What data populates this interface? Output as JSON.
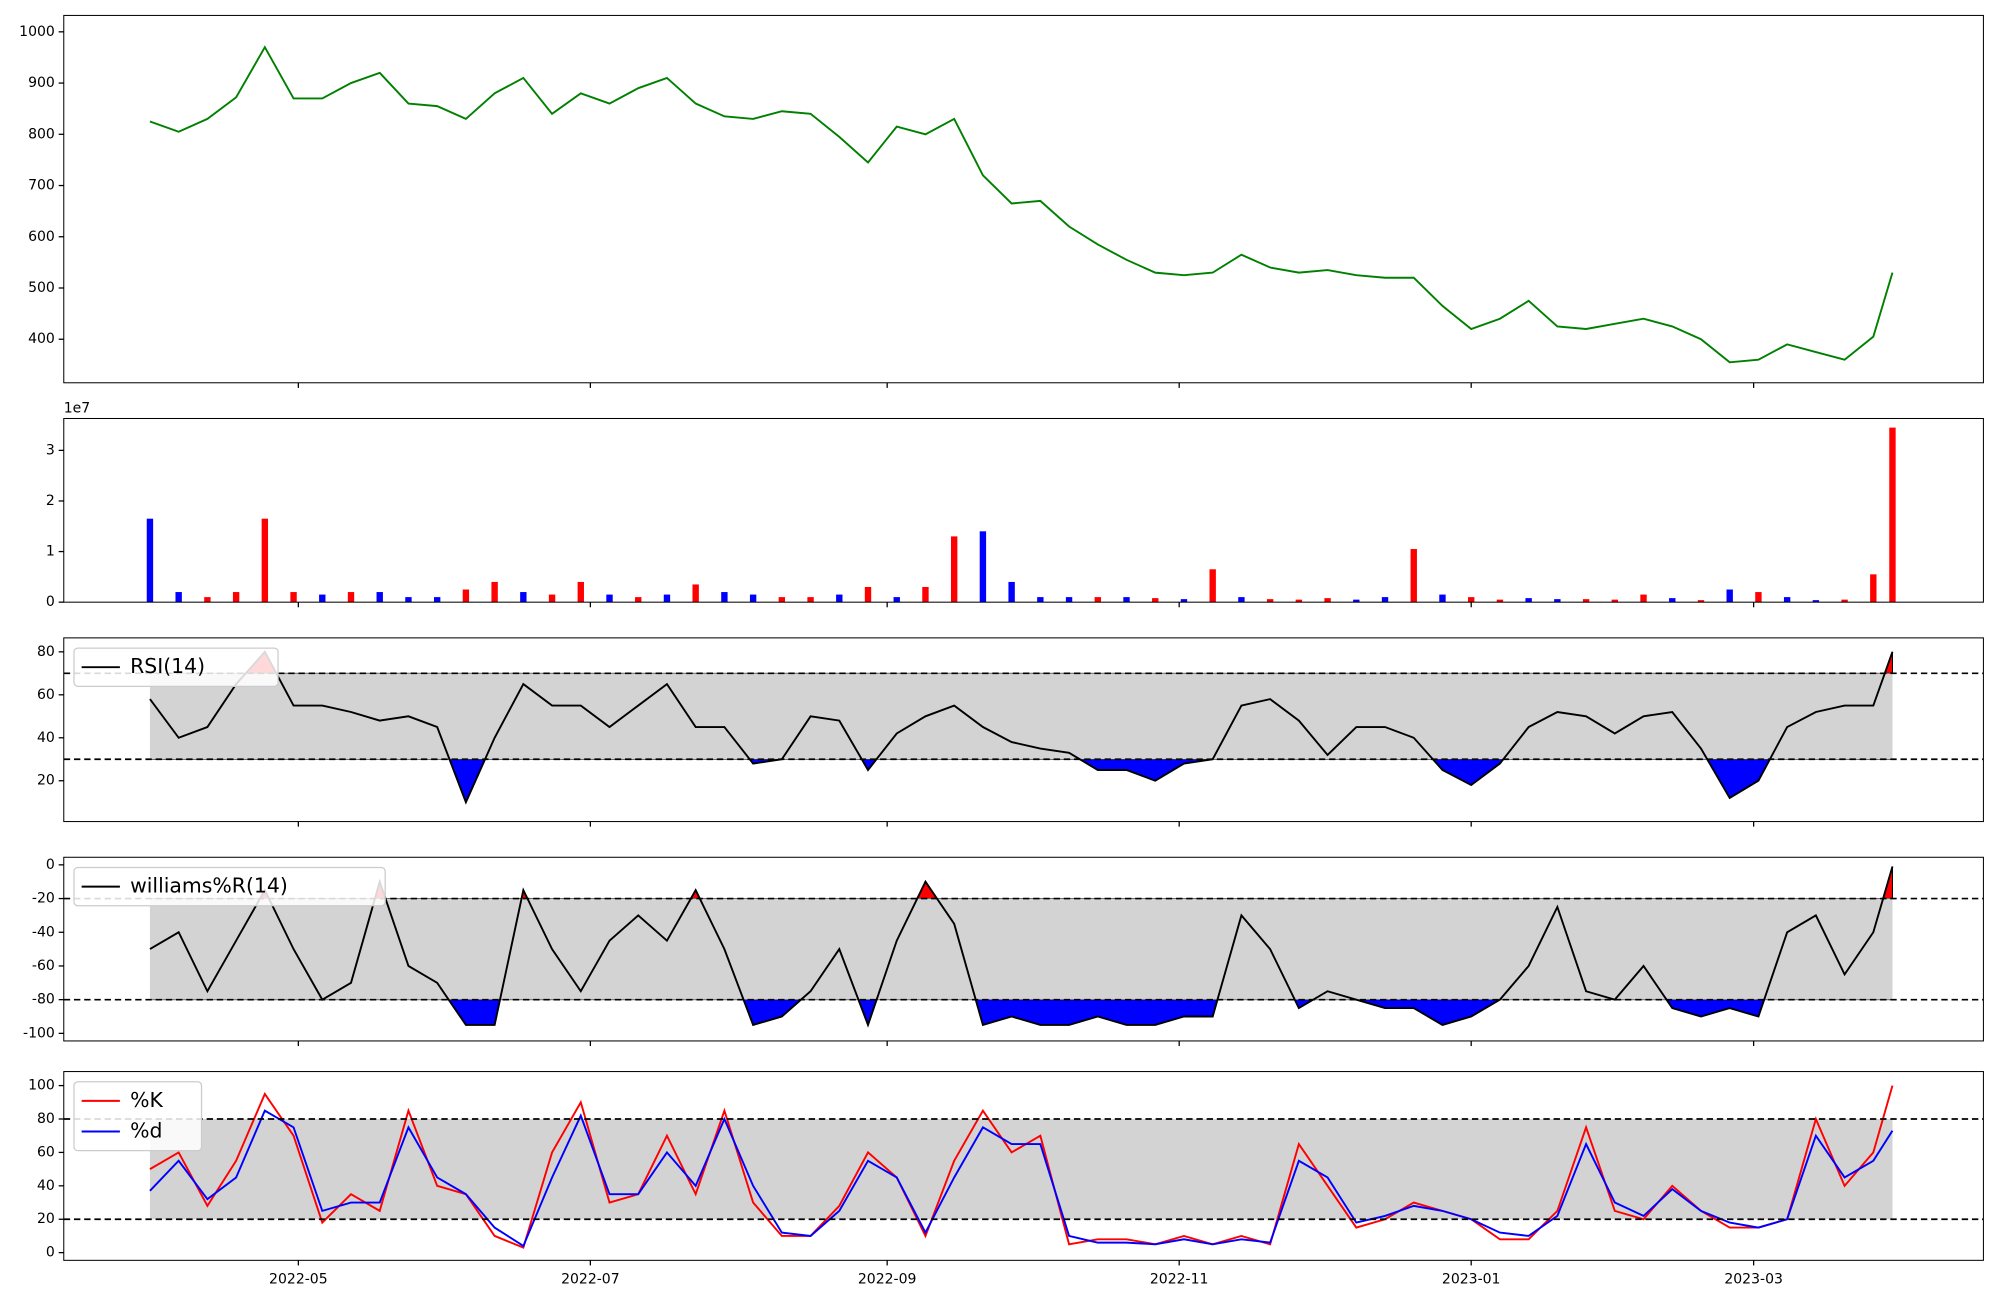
{
  "chart_data": [
    {
      "type": "line",
      "color": "green",
      "x": [
        0,
        6,
        12,
        18,
        24,
        30,
        36,
        42,
        48,
        54,
        60,
        66,
        72,
        78,
        84,
        90,
        96,
        102,
        108,
        114,
        120,
        126,
        132,
        138,
        144,
        150,
        156,
        162,
        168,
        174,
        180,
        186,
        192,
        198,
        204,
        210,
        216,
        222,
        228,
        234,
        240,
        246,
        252,
        258,
        264,
        270,
        276,
        282,
        288,
        294,
        300,
        306,
        312,
        318,
        324,
        330,
        336,
        342,
        348,
        354,
        360,
        364
      ],
      "values": [
        825,
        805,
        830,
        872,
        970,
        870,
        870,
        900,
        920,
        860,
        855,
        830,
        880,
        910,
        840,
        880,
        860,
        890,
        910,
        860,
        835,
        830,
        845,
        840,
        795,
        745,
        815,
        800,
        830,
        720,
        665,
        670,
        620,
        585,
        555,
        530,
        525,
        530,
        565,
        540,
        530,
        535,
        525,
        520,
        520,
        465,
        420,
        440,
        475,
        425,
        420,
        430,
        440,
        425,
        400,
        355,
        360,
        390,
        375,
        360,
        405,
        530
      ],
      "xlim": [
        -18,
        383
      ],
      "ylim": [
        315,
        1032
      ],
      "yticks": [
        400,
        500,
        600,
        700,
        800,
        900,
        1000
      ]
    },
    {
      "type": "bar",
      "y_offset_label": "1e7",
      "x": [
        0,
        6,
        12,
        18,
        24,
        30,
        36,
        42,
        48,
        54,
        60,
        66,
        72,
        78,
        84,
        90,
        96,
        102,
        108,
        114,
        120,
        126,
        132,
        138,
        144,
        150,
        156,
        162,
        168,
        174,
        180,
        186,
        192,
        198,
        204,
        210,
        216,
        222,
        228,
        234,
        240,
        246,
        252,
        258,
        264,
        270,
        276,
        282,
        288,
        294,
        300,
        306,
        312,
        318,
        324,
        330,
        336,
        342,
        348,
        354,
        360,
        364
      ],
      "values": [
        16500000,
        2000000,
        1000000,
        2000000,
        16500000,
        2000000,
        1500000,
        2000000,
        2000000,
        1000000,
        1000000,
        2500000,
        4000000,
        2000000,
        1500000,
        4000000,
        1500000,
        1000000,
        1500000,
        3500000,
        2000000,
        1500000,
        1000000,
        1000000,
        1500000,
        3000000,
        1000000,
        3000000,
        13000000,
        14000000,
        4000000,
        1000000,
        1000000,
        1000000,
        1000000,
        800000,
        600000,
        6500000,
        1000000,
        600000,
        500000,
        800000,
        500000,
        1000000,
        10500000,
        1500000,
        1000000,
        500000,
        800000,
        600000,
        600000,
        500000,
        1500000,
        800000,
        400000,
        2500000,
        2000000,
        1000000,
        400000,
        500000,
        5500000,
        34500000
      ],
      "colors": [
        "blue",
        "blue",
        "red",
        "red",
        "red",
        "red",
        "blue",
        "red",
        "blue",
        "blue",
        "blue",
        "red",
        "red",
        "blue",
        "red",
        "red",
        "blue",
        "red",
        "blue",
        "red",
        "blue",
        "blue",
        "red",
        "red",
        "blue",
        "red",
        "blue",
        "red",
        "red",
        "blue",
        "blue",
        "blue",
        "blue",
        "red",
        "blue",
        "red",
        "blue",
        "red",
        "blue",
        "red",
        "red",
        "red",
        "blue",
        "blue",
        "red",
        "blue",
        "red",
        "red",
        "blue",
        "blue",
        "red",
        "red",
        "red",
        "blue",
        "red",
        "blue",
        "red",
        "blue",
        "blue",
        "red",
        "red",
        "red"
      ],
      "xlim": [
        -18,
        383
      ],
      "ylim": [
        0,
        36300000
      ],
      "yticks": [
        0,
        {
          "value": 10000000,
          "label": "1"
        },
        {
          "value": 20000000,
          "label": "2"
        },
        {
          "value": 30000000,
          "label": "3"
        }
      ]
    },
    {
      "type": "line",
      "bands": [
        30,
        70
      ],
      "band_color": "lightgray",
      "over_color": "red",
      "under_color": "blue",
      "legend": "upper left",
      "x": [
        0,
        6,
        12,
        18,
        24,
        30,
        36,
        42,
        48,
        54,
        60,
        66,
        72,
        78,
        84,
        90,
        96,
        102,
        108,
        114,
        120,
        126,
        132,
        138,
        144,
        150,
        156,
        162,
        168,
        174,
        180,
        186,
        192,
        198,
        204,
        210,
        216,
        222,
        228,
        234,
        240,
        246,
        252,
        258,
        264,
        270,
        276,
        282,
        288,
        294,
        300,
        306,
        312,
        318,
        324,
        330,
        336,
        342,
        348,
        354,
        360,
        364
      ],
      "series": [
        {
          "name": "RSI(14)",
          "color": "black",
          "values": [
            58,
            40,
            45,
            65,
            80,
            55,
            55,
            52,
            48,
            50,
            45,
            10,
            40,
            65,
            55,
            55,
            45,
            55,
            65,
            45,
            45,
            28,
            30,
            50,
            48,
            25,
            42,
            50,
            55,
            45,
            38,
            35,
            33,
            25,
            25,
            20,
            28,
            30,
            55,
            58,
            48,
            32,
            45,
            45,
            40,
            25,
            18,
            28,
            45,
            52,
            50,
            42,
            50,
            52,
            35,
            12,
            20,
            45,
            52,
            55,
            55,
            80
          ]
        }
      ],
      "xlim": [
        -18,
        383
      ],
      "ylim": [
        1,
        86.5
      ],
      "yticks": [
        20,
        40,
        60,
        80
      ]
    },
    {
      "type": "line",
      "bands": [
        -80,
        -20
      ],
      "band_color": "lightgray",
      "over_color": "red",
      "under_color": "blue",
      "legend": "upper left",
      "x": [
        0,
        6,
        12,
        18,
        24,
        30,
        36,
        42,
        48,
        54,
        60,
        66,
        72,
        78,
        84,
        90,
        96,
        102,
        108,
        114,
        120,
        126,
        132,
        138,
        144,
        150,
        156,
        162,
        168,
        174,
        180,
        186,
        192,
        198,
        204,
        210,
        216,
        222,
        228,
        234,
        240,
        246,
        252,
        258,
        264,
        270,
        276,
        282,
        288,
        294,
        300,
        306,
        312,
        318,
        324,
        330,
        336,
        342,
        348,
        354,
        360,
        364
      ],
      "series": [
        {
          "name": "williams%R(14)",
          "color": "black",
          "values": [
            -50,
            -40,
            -75,
            -45,
            -15,
            -50,
            -80,
            -70,
            -10,
            -60,
            -70,
            -95,
            -95,
            -15,
            -50,
            -75,
            -45,
            -30,
            -45,
            -15,
            -50,
            -95,
            -90,
            -75,
            -50,
            -95,
            -45,
            -10,
            -35,
            -95,
            -90,
            -95,
            -95,
            -90,
            -95,
            -95,
            -90,
            -90,
            -30,
            -50,
            -85,
            -75,
            -80,
            -85,
            -85,
            -95,
            -90,
            -80,
            -60,
            -25,
            -75,
            -80,
            -60,
            -85,
            -90,
            -85,
            -90,
            -40,
            -30,
            -65,
            -40,
            -1
          ]
        }
      ],
      "xlim": [
        -18,
        383
      ],
      "ylim": [
        -104.5,
        4.5
      ],
      "yticks": [
        -100,
        -80,
        -60,
        -40,
        -20,
        0
      ]
    },
    {
      "type": "line",
      "bands": [
        20,
        80
      ],
      "band_color": "lightgray",
      "legend": "upper left",
      "x": [
        0,
        6,
        12,
        18,
        24,
        30,
        36,
        42,
        48,
        54,
        60,
        66,
        72,
        78,
        84,
        90,
        96,
        102,
        108,
        114,
        120,
        126,
        132,
        138,
        144,
        150,
        156,
        162,
        168,
        174,
        180,
        186,
        192,
        198,
        204,
        210,
        216,
        222,
        228,
        234,
        240,
        246,
        252,
        258,
        264,
        270,
        276,
        282,
        288,
        294,
        300,
        306,
        312,
        318,
        324,
        330,
        336,
        342,
        348,
        354,
        360,
        364
      ],
      "series": [
        {
          "name": "%K",
          "color": "red",
          "values": [
            50,
            60,
            28,
            55,
            95,
            70,
            18,
            35,
            25,
            85,
            40,
            35,
            10,
            3,
            60,
            90,
            30,
            35,
            70,
            35,
            85,
            30,
            10,
            10,
            28,
            60,
            45,
            10,
            55,
            85,
            60,
            70,
            5,
            8,
            8,
            5,
            10,
            5,
            10,
            5,
            65,
            40,
            15,
            20,
            30,
            25,
            20,
            8,
            8,
            25,
            75,
            25,
            20,
            40,
            25,
            15,
            15,
            20,
            80,
            40,
            60,
            100
          ]
        },
        {
          "name": "%d",
          "color": "blue",
          "values": [
            37,
            55,
            32,
            45,
            85,
            75,
            25,
            30,
            30,
            75,
            45,
            35,
            15,
            4,
            45,
            82,
            35,
            35,
            60,
            40,
            80,
            40,
            12,
            10,
            25,
            55,
            45,
            12,
            45,
            75,
            65,
            65,
            10,
            6,
            6,
            5,
            8,
            5,
            8,
            6,
            55,
            45,
            18,
            22,
            28,
            25,
            20,
            12,
            10,
            22,
            65,
            30,
            22,
            38,
            25,
            18,
            15,
            20,
            70,
            45,
            55,
            73
          ]
        }
      ],
      "xlim": [
        -18,
        383
      ],
      "ylim": [
        -4.6,
        108.4
      ],
      "yticks": [
        0,
        20,
        40,
        60,
        80,
        100
      ],
      "xticks": [
        {
          "value": 31,
          "label": "2022-05"
        },
        {
          "value": 92,
          "label": "2022-07"
        },
        {
          "value": 154,
          "label": "2022-09"
        },
        {
          "value": 215,
          "label": "2022-11"
        },
        {
          "value": 276,
          "label": "2023-01"
        },
        {
          "value": 335,
          "label": "2023-03"
        }
      ]
    }
  ]
}
